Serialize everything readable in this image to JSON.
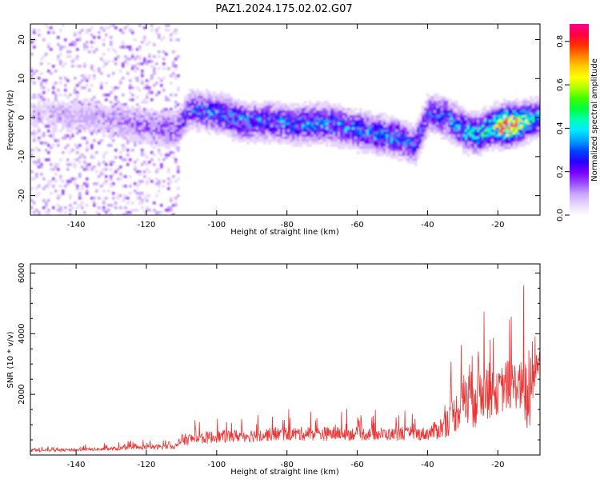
{
  "title": "PAZ1.2024.175.02.02.G07",
  "chart_data": [
    {
      "type": "heatmap",
      "xlabel": "Height of straight line (km)",
      "ylabel": "Frequency (Hz)",
      "xlim": [
        -153,
        -8
      ],
      "ylim": [
        -25,
        24
      ],
      "x_ticks": [
        -140,
        -120,
        -100,
        -80,
        -60,
        -40,
        -20
      ],
      "y_ticks": [
        -20,
        -10,
        0,
        10,
        20
      ],
      "colorbar": {
        "label": "Normalized spectral amplitude",
        "range": [
          0.0,
          0.88
        ],
        "ticks": [
          0.0,
          0.2,
          0.4,
          0.6,
          0.8
        ],
        "colors": [
          "#ffffff",
          "#e8d5ff",
          "#c9a6ff",
          "#9a4dff",
          "#7a00ff",
          "#2a00ff",
          "#0040ff",
          "#00a0ff",
          "#00eaff",
          "#00ffb0",
          "#00ff40",
          "#40ff00",
          "#b0ff00",
          "#ffff00",
          "#ffcc00",
          "#ff8000",
          "#ff3000",
          "#ff0040",
          "#ff0090"
        ]
      },
      "ridge": {
        "x": [
          -153,
          -145,
          -135,
          -128,
          -120,
          -112,
          -108,
          -100,
          -92,
          -85,
          -78,
          -70,
          -62,
          -55,
          -48,
          -44,
          -40,
          -35,
          -30,
          -26,
          -22,
          -18,
          -14,
          -10,
          -8
        ],
        "freq": [
          1.5,
          1.0,
          0.5,
          -0.5,
          -2.0,
          -3.0,
          2.5,
          1.5,
          -1.0,
          -0.5,
          -1.5,
          -1.0,
          -2.5,
          -4.0,
          -5.0,
          -7.0,
          1.5,
          0.5,
          -3.0,
          -4.0,
          -2.0,
          -1.8,
          -1.2,
          0.0,
          0.5
        ],
        "peak_amplitude": [
          0.05,
          0.08,
          0.1,
          0.12,
          0.15,
          0.18,
          0.25,
          0.3,
          0.3,
          0.28,
          0.3,
          0.32,
          0.3,
          0.32,
          0.3,
          0.25,
          0.25,
          0.3,
          0.35,
          0.4,
          0.45,
          0.85,
          0.6,
          0.35,
          0.3
        ]
      }
    },
    {
      "type": "line",
      "xlabel": "Height of straight line (km)",
      "ylabel": "SNR (10 * v/v)",
      "xlim": [
        -153,
        -8
      ],
      "ylim": [
        0,
        6300
      ],
      "x_ticks": [
        -140,
        -120,
        -100,
        -80,
        -60,
        -40,
        -20
      ],
      "y_ticks": [
        2000,
        4000,
        6000
      ],
      "color": "#ee3333",
      "envelope": {
        "x": [
          -153,
          -140,
          -130,
          -120,
          -111,
          -110,
          -100,
          -90,
          -80,
          -70,
          -60,
          -50,
          -40,
          -36,
          -32,
          -30,
          -28,
          -26,
          -24,
          -22,
          -20,
          -18,
          -16,
          -14,
          -12,
          -11,
          -10,
          -8
        ],
        "base": [
          150,
          170,
          200,
          250,
          300,
          500,
          600,
          650,
          700,
          700,
          700,
          680,
          700,
          900,
          1400,
          1800,
          2000,
          2200,
          2200,
          2100,
          2000,
          2300,
          2300,
          2300,
          2000,
          1800,
          2500,
          3200
        ],
        "spread": [
          80,
          90,
          110,
          140,
          170,
          350,
          380,
          400,
          420,
          420,
          400,
          380,
          400,
          700,
          1200,
          1500,
          2200,
          2400,
          1800,
          1700,
          1200,
          1600,
          1500,
          1400,
          2200,
          3200,
          1300,
          700
        ]
      }
    }
  ]
}
